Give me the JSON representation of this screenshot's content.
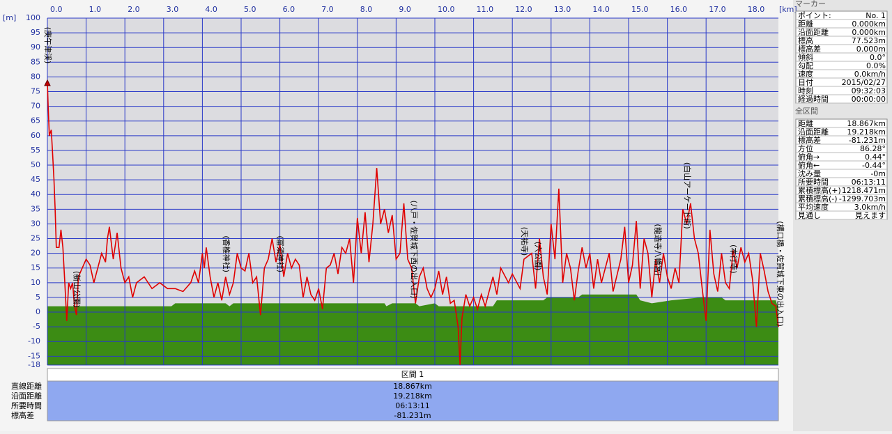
{
  "chart_data": {
    "type": "line",
    "x_unit": "[km]",
    "y_unit": "[m]",
    "xlim": [
      0,
      18.867
    ],
    "ylim": [
      -18,
      100
    ],
    "xticks": [
      {
        "value": 0,
        "label": "0.0"
      },
      {
        "value": 1,
        "label": "1.0"
      },
      {
        "value": 2,
        "label": "2.0"
      },
      {
        "value": 3,
        "label": "3.0"
      },
      {
        "value": 4,
        "label": "4.0"
      },
      {
        "value": 5,
        "label": "5.0"
      },
      {
        "value": 6,
        "label": "6.0"
      },
      {
        "value": 7,
        "label": "7.0"
      },
      {
        "value": 8,
        "label": "8.0"
      },
      {
        "value": 9,
        "label": "9.0"
      },
      {
        "value": 10,
        "label": "10.0"
      },
      {
        "value": 11,
        "label": "11.0"
      },
      {
        "value": 12,
        "label": "12.0"
      },
      {
        "value": 13,
        "label": "13.0"
      },
      {
        "value": 14,
        "label": "14.0"
      },
      {
        "value": 15,
        "label": "15.0"
      },
      {
        "value": 16,
        "label": "16.0"
      },
      {
        "value": 17,
        "label": "17.0"
      },
      {
        "value": 18,
        "label": "18.0"
      }
    ],
    "yticks": [
      -18,
      -15,
      -10,
      -5,
      0,
      5,
      10,
      15,
      20,
      25,
      30,
      35,
      40,
      45,
      50,
      55,
      60,
      65,
      70,
      75,
      80,
      85,
      90,
      95,
      100
    ],
    "grid": true,
    "series": [
      {
        "color": "#e00000",
        "x": [
          0,
          0.02,
          0.05,
          0.1,
          0.13,
          0.17,
          0.2,
          0.23,
          0.3,
          0.35,
          0.4,
          0.45,
          0.5,
          0.55,
          0.6,
          0.65,
          0.7,
          0.75,
          0.8,
          0.9,
          1.0,
          1.1,
          1.2,
          1.3,
          1.4,
          1.5,
          1.55,
          1.6,
          1.7,
          1.8,
          1.9,
          2.0,
          2.1,
          2.2,
          2.3,
          2.5,
          2.7,
          2.9,
          3.1,
          3.3,
          3.5,
          3.7,
          3.8,
          3.9,
          4.0,
          4.05,
          4.1,
          4.2,
          4.3,
          4.4,
          4.5,
          4.6,
          4.7,
          4.8,
          4.9,
          5.0,
          5.1,
          5.2,
          5.3,
          5.4,
          5.5,
          5.6,
          5.7,
          5.8,
          5.9,
          6.0,
          6.1,
          6.2,
          6.3,
          6.4,
          6.5,
          6.6,
          6.7,
          6.8,
          6.9,
          7.0,
          7.1,
          7.2,
          7.3,
          7.4,
          7.5,
          7.6,
          7.7,
          7.8,
          7.9,
          8.0,
          8.1,
          8.2,
          8.3,
          8.4,
          8.5,
          8.6,
          8.7,
          8.8,
          8.9,
          9.0,
          9.1,
          9.2,
          9.3,
          9.4,
          9.5,
          9.6,
          9.7,
          9.8,
          9.9,
          10.0,
          10.1,
          10.2,
          10.3,
          10.4,
          10.5,
          10.6,
          10.65,
          10.7,
          10.8,
          10.9,
          11.0,
          11.1,
          11.2,
          11.3,
          11.5,
          11.6,
          11.7,
          11.9,
          12.0,
          12.2,
          12.3,
          12.5,
          12.6,
          12.7,
          12.8,
          12.9,
          13.0,
          13.1,
          13.2,
          13.3,
          13.4,
          13.5,
          13.6,
          13.7,
          13.8,
          13.9,
          14.0,
          14.1,
          14.2,
          14.3,
          14.4,
          14.5,
          14.6,
          14.8,
          14.9,
          15.0,
          15.1,
          15.2,
          15.3,
          15.4,
          15.5,
          15.6,
          15.7,
          15.8,
          15.9,
          16.0,
          16.1,
          16.2,
          16.3,
          16.4,
          16.5,
          16.6,
          16.7,
          16.8,
          16.9,
          17.0,
          17.1,
          17.2,
          17.3,
          17.4,
          17.5,
          17.6,
          17.7,
          17.8,
          17.9,
          18.0,
          18.1,
          18.2,
          18.3,
          18.4,
          18.5,
          18.6,
          18.7,
          18.8,
          18.867
        ],
        "values": [
          78,
          70,
          60,
          62,
          55,
          45,
          35,
          22,
          22,
          28,
          22,
          10,
          -3,
          10,
          8,
          10,
          2,
          -1,
          12,
          15,
          18,
          16,
          10,
          15,
          20,
          17,
          25,
          29,
          18,
          27,
          15,
          10,
          12,
          5,
          10,
          12,
          8,
          10,
          8,
          8,
          7,
          10,
          14,
          10,
          20,
          15,
          22,
          12,
          5,
          10,
          4,
          12,
          6,
          10,
          20,
          15,
          14,
          20,
          10,
          12,
          -1,
          15,
          18,
          25,
          17,
          23,
          12,
          20,
          15,
          18,
          16,
          5,
          12,
          6,
          4,
          8,
          1,
          15,
          16,
          20,
          13,
          22,
          20,
          25,
          10,
          32,
          20,
          34,
          17,
          30,
          49,
          30,
          35,
          27,
          33,
          18,
          20,
          37,
          18,
          15,
          3,
          12,
          15,
          8,
          5,
          8,
          14,
          6,
          12,
          3,
          4,
          -5,
          -18,
          -2,
          6,
          2,
          5,
          1,
          6,
          2,
          12,
          6,
          15,
          10,
          13,
          8,
          18,
          20,
          8,
          25,
          12,
          6,
          30,
          18,
          42,
          10,
          20,
          15,
          4,
          14,
          22,
          15,
          20,
          8,
          18,
          10,
          15,
          20,
          7,
          18,
          29,
          10,
          16,
          31,
          8,
          25,
          20,
          5,
          18,
          10,
          20,
          12,
          8,
          15,
          10,
          35,
          30,
          37,
          25,
          20,
          8,
          -3,
          28,
          13,
          7,
          20,
          10,
          8,
          21,
          15,
          22,
          17,
          20,
          11,
          -5,
          20,
          14,
          7,
          3,
          2,
          -5
        ]
      },
      {
        "color": "#3c8c14",
        "x": [
          0,
          3.2,
          3.3,
          4.6,
          4.7,
          4.8,
          8.7,
          8.75,
          8.9,
          9.5,
          9.6,
          10.0,
          10.1,
          11.5,
          11.6,
          12.8,
          12.9,
          13.7,
          13.8,
          15.2,
          15.3,
          15.6,
          16.1,
          16.9,
          17.4,
          17.5,
          18.8,
          18.867
        ],
        "values": [
          2,
          2,
          3,
          3,
          2,
          3,
          3,
          2,
          3,
          3,
          2,
          3,
          2,
          2,
          4,
          4,
          5,
          5,
          6,
          6,
          4,
          3,
          4,
          5,
          5,
          4,
          4,
          1
        ]
      }
    ],
    "marker": {
      "x": 0,
      "y": 78
    },
    "annotations": [
      {
        "x": 0.0,
        "y": 97,
        "label": "(庚午津渓)"
      },
      {
        "x": 0.75,
        "y": 14,
        "label": "(新山公園)"
      },
      {
        "x": 4.6,
        "y": 26,
        "label": "(香椎神社)"
      },
      {
        "x": 6.0,
        "y": 26,
        "label": "(冨須神社)"
      },
      {
        "x": 9.45,
        "y": 38,
        "label": "(八戸・佐賀城下西の出入口)"
      },
      {
        "x": 12.3,
        "y": 29,
        "label": "(天祐寺)"
      },
      {
        "x": 12.65,
        "y": 24,
        "label": "(六公園)"
      },
      {
        "x": 15.75,
        "y": 30,
        "label": "(龍造寺八幡宮)"
      },
      {
        "x": 16.5,
        "y": 51,
        "label": "(白山アーケード街)"
      },
      {
        "x": 17.7,
        "y": 23,
        "label": "(本行寺)"
      },
      {
        "x": 18.9,
        "y": 31,
        "label": "(構口橋・佐賀城下東の出入口)"
      }
    ]
  },
  "section": {
    "title": "区間 1",
    "rows": [
      [
        "直線距離",
        "18.867km"
      ],
      [
        "沿面距離",
        "19.218km"
      ],
      [
        "所要時間",
        "06:13:11"
      ],
      [
        "標高差",
        "-81.231m"
      ]
    ]
  },
  "marker_panel": {
    "title": "マーカー",
    "rows": [
      [
        "ポイント:",
        "No. 1"
      ],
      [
        "距離",
        "0.000km"
      ],
      [
        "沿面距離",
        "0.000km"
      ],
      [
        "標高",
        "77.523m"
      ],
      [
        "標高差",
        "0.000m"
      ],
      [
        "傾斜",
        "0.0°"
      ],
      [
        "勾配",
        "0.0%"
      ],
      [
        "速度",
        "0.0km/h"
      ],
      [
        "日付",
        "2015/02/27"
      ],
      [
        "時刻",
        "09:32:03"
      ],
      [
        "経過時間",
        "00:00:00"
      ]
    ]
  },
  "total_panel": {
    "title": "全区間",
    "rows": [
      [
        "距離",
        "18.867km"
      ],
      [
        "沿面距離",
        "19.218km"
      ],
      [
        "標高差",
        "-81.231m"
      ],
      [
        "方位",
        "86.28°"
      ],
      [
        "俯角→",
        "0.44°"
      ],
      [
        "俯角←",
        "-0.44°"
      ],
      [
        "沈み量",
        "-0m"
      ],
      [
        "所要時間",
        "06:13:11"
      ],
      [
        "累積標高(+)",
        "1218.471m"
      ],
      [
        "累積標高(-)",
        "-1299.703m"
      ],
      [
        "平均速度",
        "3.0km/h"
      ],
      [
        "見通し",
        "見えます"
      ]
    ]
  }
}
